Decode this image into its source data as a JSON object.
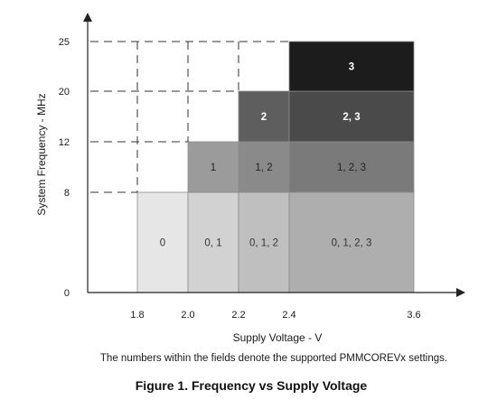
{
  "axes": {
    "x_title": "Supply Voltage - V",
    "y_title": "System Frequency - MHz",
    "x_ticks": [
      "1.8",
      "2.0",
      "2.2",
      "2.4",
      "3.6"
    ],
    "y_ticks": [
      "25",
      "20",
      "12",
      "8",
      "0"
    ]
  },
  "regions": [
    {
      "label": "0",
      "x": [
        1.8,
        2.0
      ],
      "y": [
        0,
        8
      ],
      "fill": "#e6e6e6",
      "text_color": "#333333"
    },
    {
      "label": "0, 1",
      "x": [
        2.0,
        2.2
      ],
      "y": [
        0,
        8
      ],
      "fill": "#d2d2d2",
      "text_color": "#333333"
    },
    {
      "label": "0, 1, 2",
      "x": [
        2.2,
        2.4
      ],
      "y": [
        0,
        8
      ],
      "fill": "#bfbfbf",
      "text_color": "#333333"
    },
    {
      "label": "0, 1, 2, 3",
      "x": [
        2.4,
        3.6
      ],
      "y": [
        0,
        8
      ],
      "fill": "#aeaeae",
      "text_color": "#333333"
    },
    {
      "label": "1",
      "x": [
        2.0,
        2.2
      ],
      "y": [
        8,
        12
      ],
      "fill": "#9b9b9b",
      "text_color": "#222222"
    },
    {
      "label": "1, 2",
      "x": [
        2.2,
        2.4
      ],
      "y": [
        8,
        12
      ],
      "fill": "#8a8a8a",
      "text_color": "#222222"
    },
    {
      "label": "1, 2, 3",
      "x": [
        2.4,
        3.6
      ],
      "y": [
        8,
        12
      ],
      "fill": "#7a7a7a",
      "text_color": "#222222"
    },
    {
      "label": "2",
      "x": [
        2.2,
        2.4
      ],
      "y": [
        12,
        20
      ],
      "fill": "#5e5e5e",
      "text_color": "#ffffff"
    },
    {
      "label": "2, 3",
      "x": [
        2.4,
        3.6
      ],
      "y": [
        12,
        20
      ],
      "fill": "#4a4a4a",
      "text_color": "#ffffff"
    },
    {
      "label": "3",
      "x": [
        2.4,
        3.6
      ],
      "y": [
        20,
        25
      ],
      "fill": "#1c1c1c",
      "text_color": "#ffffff"
    }
  ],
  "note": "The numbers within the fields denote the supported PMMCOREVx settings.",
  "caption": "Figure 1.  Frequency vs Supply Voltage"
}
